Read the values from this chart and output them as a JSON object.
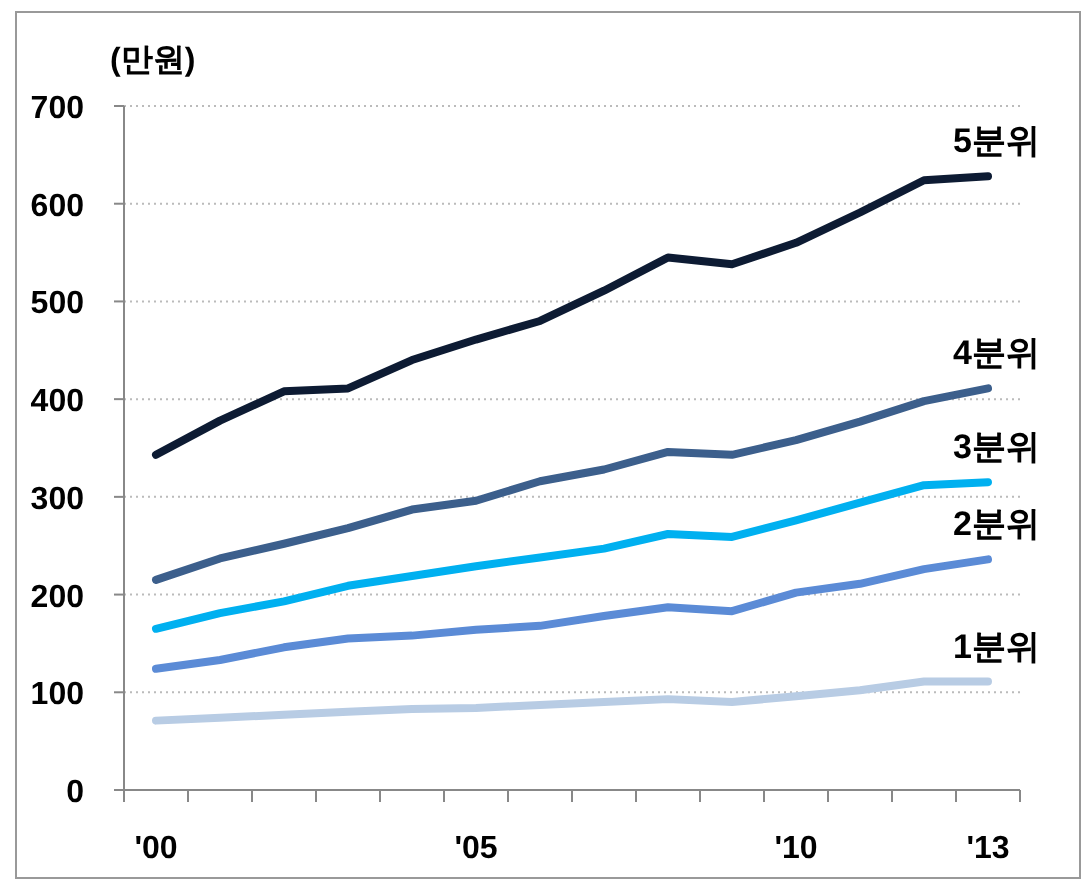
{
  "chart_data": {
    "type": "line",
    "ylabel": "(만원)",
    "categories": [
      "'00",
      null,
      null,
      null,
      null,
      "'05",
      null,
      null,
      null,
      null,
      "'10",
      null,
      null,
      "'13"
    ],
    "ylim": [
      0,
      700
    ],
    "yticks": [
      0,
      100,
      200,
      300,
      400,
      500,
      600,
      700
    ],
    "grid": "y",
    "marker": "none",
    "line_style": "solid",
    "series": [
      {
        "name": "5분위",
        "color": "#0d1b33",
        "values": [
          343,
          378,
          408,
          411,
          440,
          461,
          480,
          511,
          545,
          538,
          560,
          591,
          624,
          628
        ]
      },
      {
        "name": "4분위",
        "color": "#3c5f8c",
        "values": [
          215,
          237,
          252,
          268,
          287,
          296,
          316,
          328,
          346,
          343,
          358,
          377,
          398,
          411
        ]
      },
      {
        "name": "3분위",
        "color": "#00b0f0",
        "values": [
          165,
          181,
          193,
          209,
          219,
          229,
          238,
          247,
          262,
          259,
          276,
          294,
          312,
          315
        ]
      },
      {
        "name": "2분위",
        "color": "#5b8bd6",
        "values": [
          124,
          133,
          146,
          155,
          158,
          164,
          168,
          178,
          187,
          183,
          202,
          211,
          226,
          236
        ]
      },
      {
        "name": "1분위",
        "color": "#b8cce4",
        "values": [
          71,
          74,
          77,
          80,
          83,
          84,
          87,
          90,
          93,
          90,
          96,
          102,
          111,
          111
        ]
      }
    ]
  }
}
